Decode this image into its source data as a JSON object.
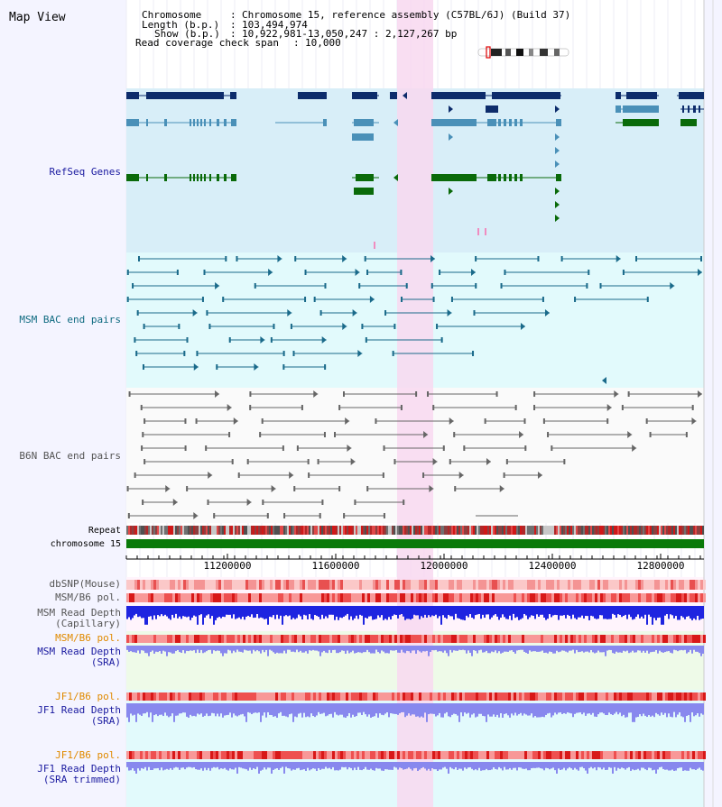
{
  "window": {
    "title": "Map View"
  },
  "info": {
    "chromosome_label": "Chromosome",
    "chromosome_value": "Chromosome 15, reference assembly (C57BL/6J) (Build 37)",
    "length_label": "Length (b.p.)",
    "length_value": "103,494,974",
    "show_label": "Show (b.p.)",
    "show_value": "10,922,981-13,050,247 : 2,127,267 bp",
    "coverage_label": "Read coverage check span",
    "coverage_value": "10,000"
  },
  "tracks": {
    "refseq": "RefSeq Genes",
    "msm_bac": "MSM BAC end pairs",
    "b6n_bac": "B6N BAC end pairs",
    "repeat": "Repeat",
    "chromosome": "chromosome 15",
    "dbsnp": "dbSNP(Mouse)",
    "msm_pol_1": "MSM/B6 pol.",
    "msm_depth_cap_1": "MSM Read Depth",
    "msm_depth_cap_2": "(Capillary)",
    "msm_pol_2": "MSM/B6 pol.",
    "msm_depth_sra_1": "MSM Read Depth",
    "msm_depth_sra_2": "(SRA)",
    "jf1_pol_1": "JF1/B6 pol.",
    "jf1_depth_sra_1": "JF1 Read Depth",
    "jf1_depth_sra_2": "(SRA)",
    "jf1_pol_2": "JF1/B6 pol.",
    "jf1_depth_trim_1": "JF1 Read Depth",
    "jf1_depth_trim_2": "(SRA trimmed)"
  },
  "axis": {
    "ticks": [
      "11200000",
      "11600000",
      "12000000",
      "12400000",
      "12800000"
    ]
  },
  "colors": {
    "refseq_bg": "#d8eef8",
    "bac_bg": "#e2fafc",
    "highlight": "#f8d8f0",
    "gene_dark": "#0d2c6b",
    "gene_light": "#4a90b8",
    "gene_green": "#0a6a0a",
    "msm_bac": "#1a6a8a",
    "b6n_bac": "#666666",
    "chromosome": "#0a7a0a",
    "depth_capillary": "#1e24e0",
    "depth_sra": "#8888ee",
    "label_blue": "#1a1aa0",
    "label_teal": "#0e6a80",
    "label_grey": "#555555",
    "label_orange": "#e08a00"
  }
}
